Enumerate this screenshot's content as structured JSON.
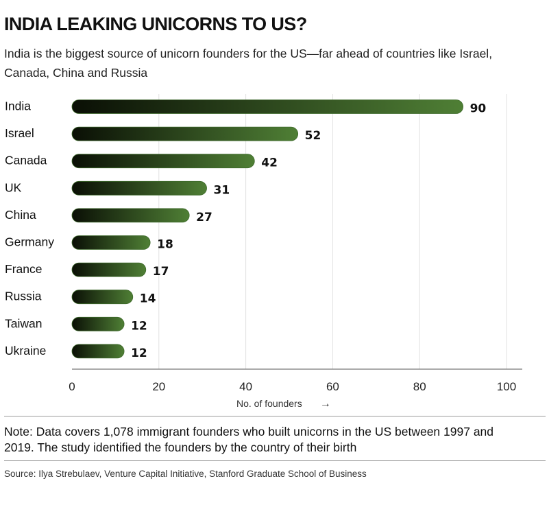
{
  "header": {
    "title": "INDIA LEAKING UNICORNS TO US?",
    "subtitle": "India is the biggest source of unicorn founders for the US—far ahead of countries like Israel, Canada, China and Russia"
  },
  "chart_data": {
    "type": "bar",
    "orientation": "horizontal",
    "categories": [
      "India",
      "Israel",
      "Canada",
      "UK",
      "China",
      "Germany",
      "France",
      "Russia",
      "Taiwan",
      "Ukraine"
    ],
    "values": [
      90,
      52,
      42,
      31,
      27,
      18,
      17,
      14,
      12,
      12
    ],
    "xlabel": "No. of founders",
    "xlim": [
      0,
      100
    ],
    "xticks": [
      0,
      20,
      40,
      60,
      80,
      100
    ],
    "grid": "vertical",
    "colors": {
      "bar_start": "#0a0f05",
      "bar_end": "#4f7f35",
      "bar_stroke": "#3d6a2a",
      "grid": "#e2e2e2",
      "axis": "#555555"
    }
  },
  "axis": {
    "arrow": "→"
  },
  "footer": {
    "note": "Note: Data covers 1,078 immigrant founders who built unicorns in the US between 1997 and 2019. The study identified the founders by the country of their birth",
    "source": "Source: Ilya Strebulaev, Venture Capital Initiative, Stanford Graduate School of Business"
  }
}
